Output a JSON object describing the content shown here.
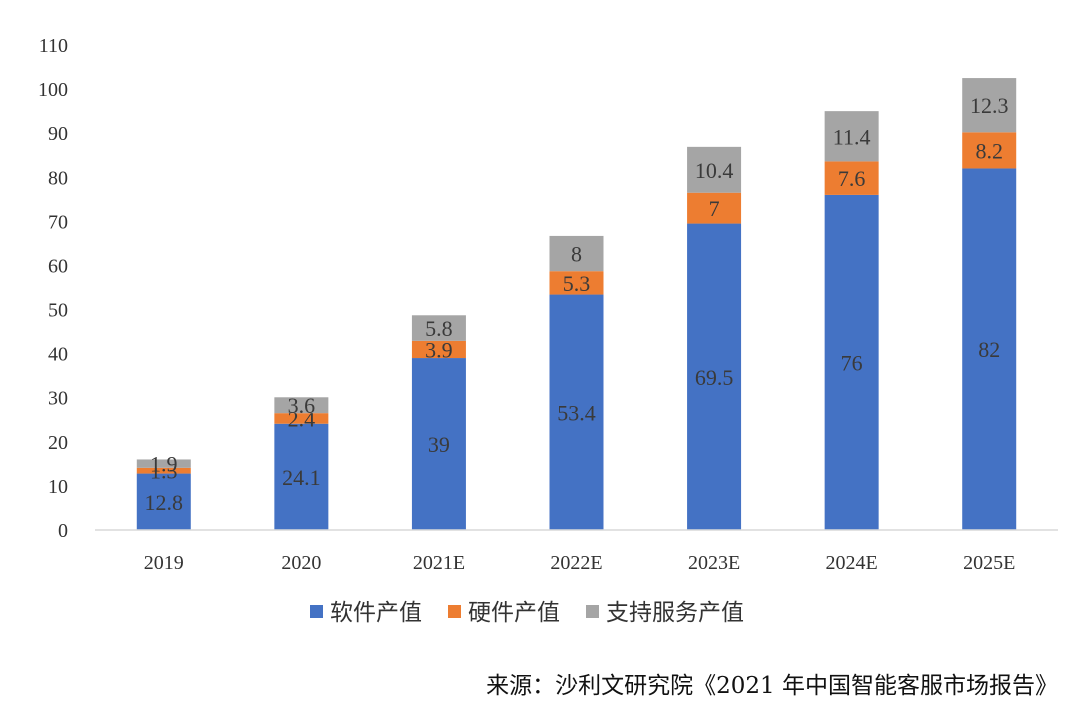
{
  "chart_data": {
    "type": "bar",
    "stacked": true,
    "categories": [
      "2019",
      "2020",
      "2021E",
      "2022E",
      "2023E",
      "2024E",
      "2025E"
    ],
    "series": [
      {
        "name": "软件产值",
        "color": "#4472C4",
        "values": [
          12.8,
          24.1,
          39,
          53.4,
          69.5,
          76,
          82
        ]
      },
      {
        "name": "硬件产值",
        "color": "#ED7D31",
        "values": [
          1.3,
          2.4,
          3.9,
          5.3,
          7,
          7.6,
          8.2
        ]
      },
      {
        "name": "支持服务产值",
        "color": "#A5A5A5",
        "values": [
          1.9,
          3.6,
          5.8,
          8,
          10.4,
          11.4,
          12.3
        ]
      }
    ],
    "yticks": [
      0,
      10,
      20,
      30,
      40,
      50,
      60,
      70,
      80,
      90,
      100,
      110
    ],
    "ylim": [
      0,
      110
    ],
    "grid": false,
    "legend_position": "bottom"
  },
  "source_text": "来源：沙利文研究院《2021 年中国智能客服市场报告》"
}
